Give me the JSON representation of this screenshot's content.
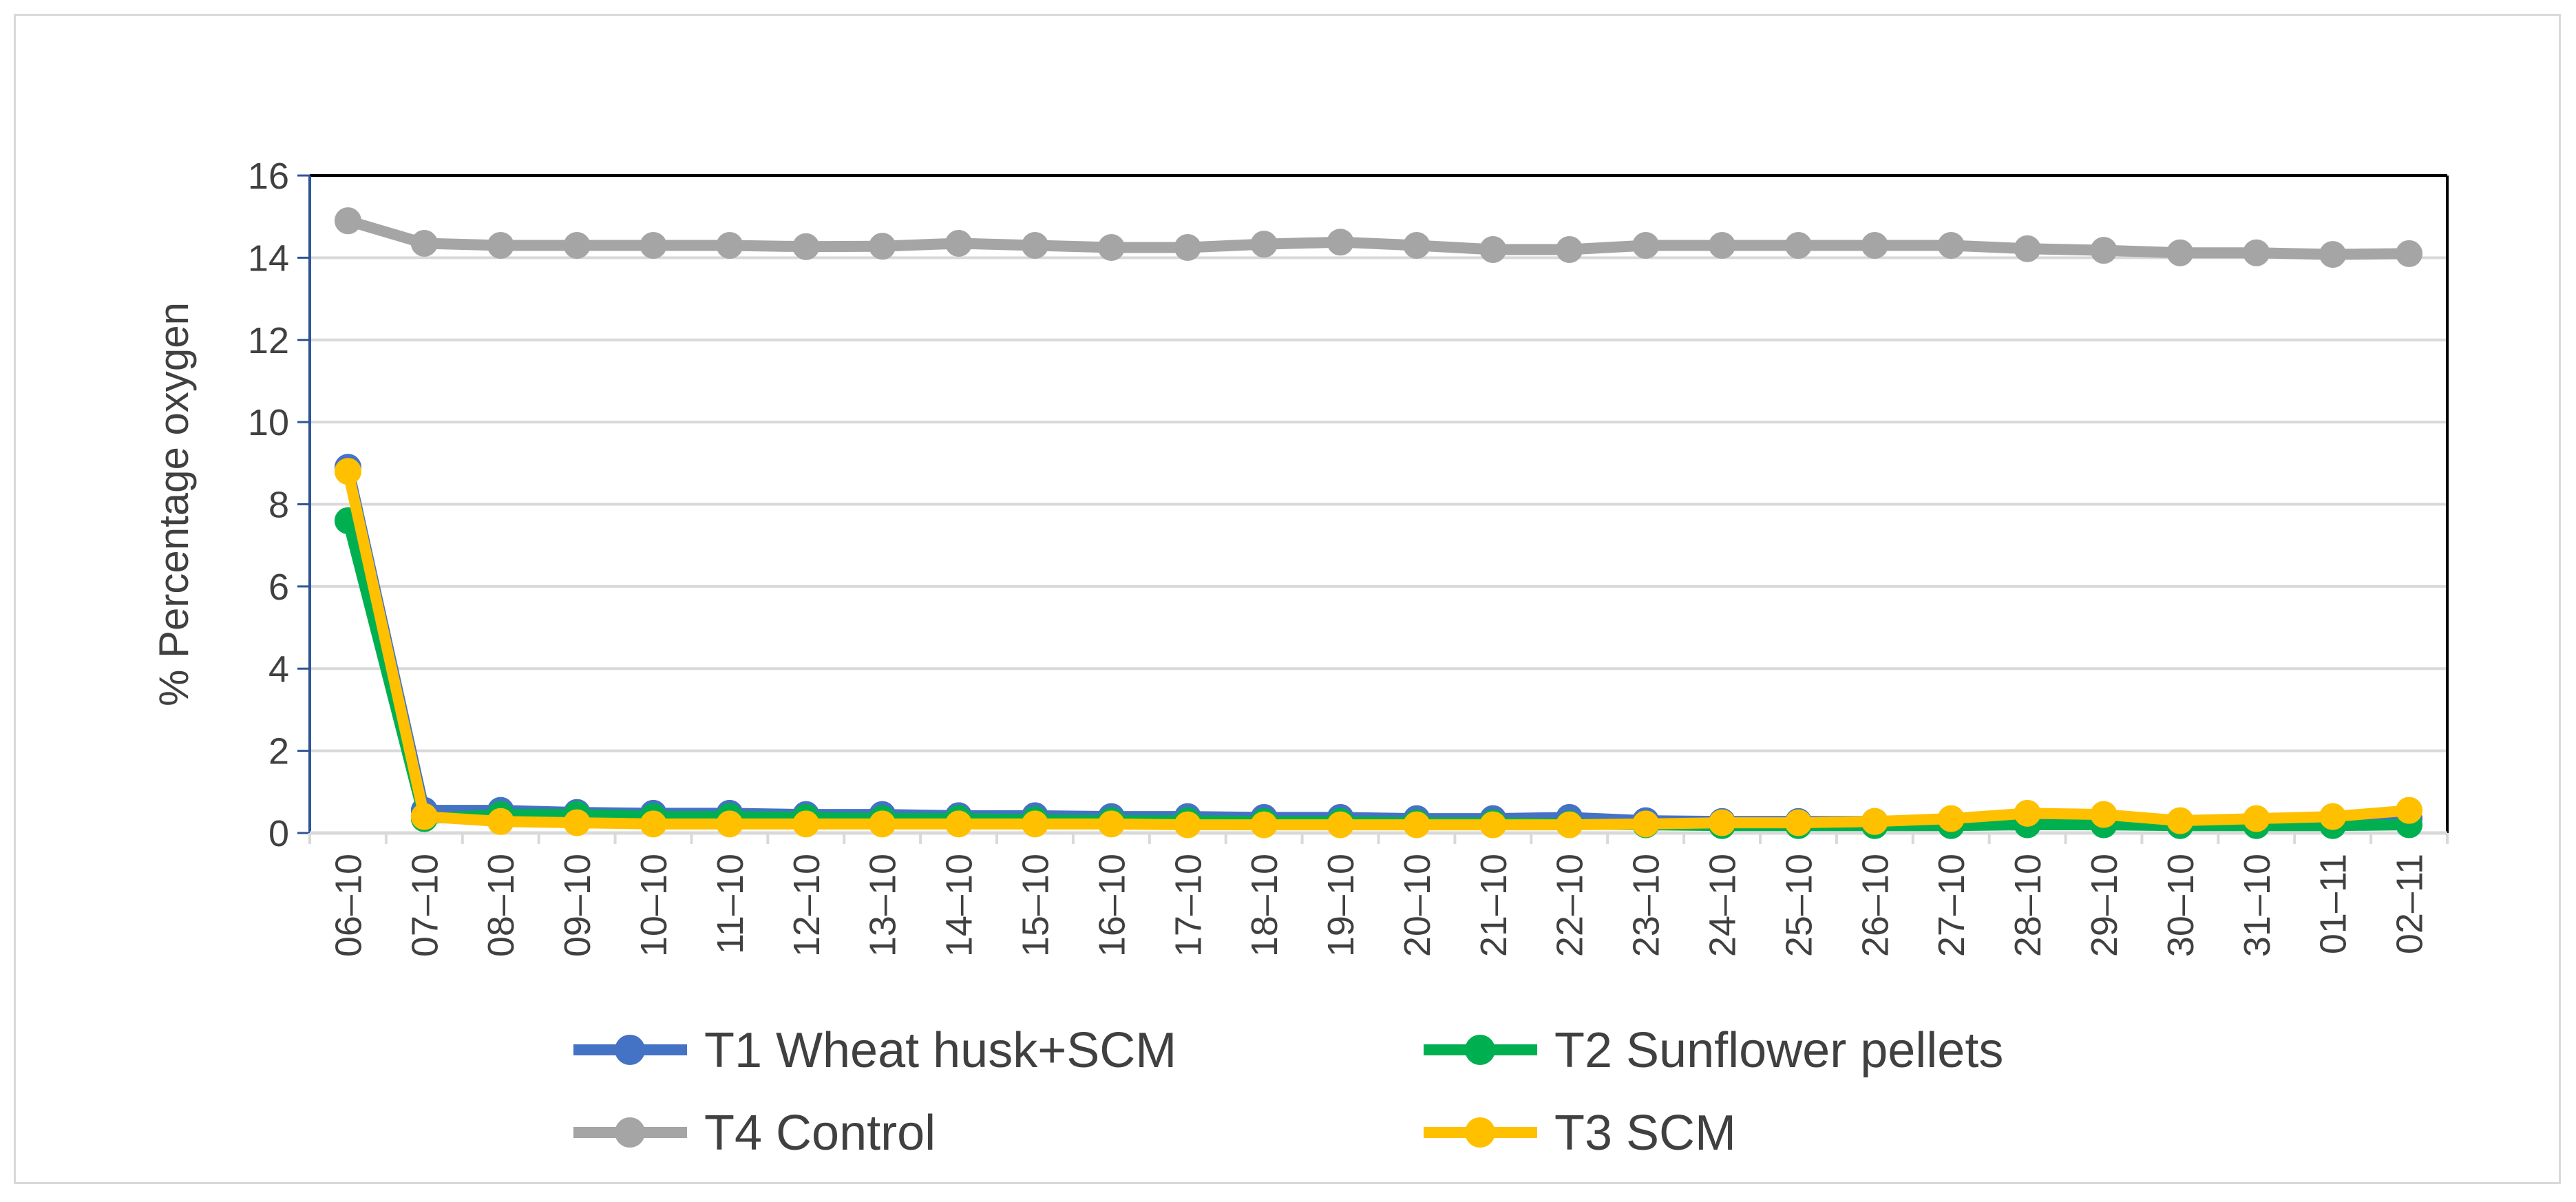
{
  "chart_data": {
    "type": "line",
    "title": "",
    "xlabel": "",
    "ylabel": "% Percentage oxygen",
    "ylim": [
      0,
      16
    ],
    "yticks": [
      0,
      2,
      4,
      6,
      8,
      10,
      12,
      14,
      16
    ],
    "grid": true,
    "legend_position": "bottom",
    "categories": [
      "06–10",
      "07–10",
      "08–10",
      "09–10",
      "10–10",
      "11–10",
      "12–10",
      "13–10",
      "14–10",
      "15–10",
      "16–10",
      "17–10",
      "18–10",
      "19–10",
      "20–10",
      "21–10",
      "22–10",
      "23–10",
      "24–10",
      "25–10",
      "26–10",
      "27–10",
      "28–10",
      "29–10",
      "30–10",
      "31–10",
      "01–11",
      "02–11"
    ],
    "series": [
      {
        "name": "T1 Wheat husk+SCM",
        "color": "#4472c4",
        "values": [
          8.9,
          0.55,
          0.55,
          0.5,
          0.48,
          0.48,
          0.45,
          0.45,
          0.42,
          0.42,
          0.4,
          0.4,
          0.38,
          0.38,
          0.35,
          0.35,
          0.38,
          0.3,
          0.28,
          0.28,
          0.28,
          0.3,
          0.3,
          0.3,
          0.28,
          0.28,
          0.3,
          0.35
        ]
      },
      {
        "name": "T4 Control",
        "color": "#a5a5a5",
        "values": [
          14.9,
          14.35,
          14.3,
          14.3,
          14.3,
          14.3,
          14.27,
          14.28,
          14.35,
          14.3,
          14.25,
          14.25,
          14.33,
          14.38,
          14.3,
          14.2,
          14.2,
          14.3,
          14.3,
          14.3,
          14.3,
          14.3,
          14.22,
          14.18,
          14.12,
          14.12,
          14.08,
          14.1
        ]
      },
      {
        "name": "T2 Sunflower pellets",
        "color": "#00b050",
        "values": [
          7.6,
          0.35,
          0.45,
          0.45,
          0.4,
          0.4,
          0.38,
          0.35,
          0.35,
          0.32,
          0.3,
          0.3,
          0.28,
          0.28,
          0.25,
          0.25,
          0.22,
          0.2,
          0.18,
          0.18,
          0.18,
          0.18,
          0.2,
          0.2,
          0.18,
          0.18,
          0.18,
          0.2
        ]
      },
      {
        "name": "T3 SCM",
        "color": "#ffc000",
        "values": [
          8.8,
          0.4,
          0.28,
          0.25,
          0.22,
          0.22,
          0.22,
          0.22,
          0.22,
          0.22,
          0.22,
          0.2,
          0.2,
          0.2,
          0.2,
          0.2,
          0.2,
          0.22,
          0.25,
          0.25,
          0.28,
          0.35,
          0.48,
          0.45,
          0.3,
          0.35,
          0.4,
          0.55
        ]
      }
    ]
  }
}
